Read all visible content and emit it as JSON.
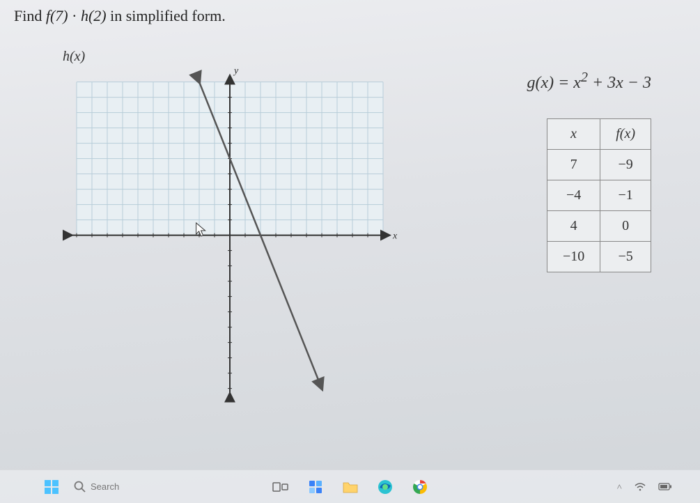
{
  "question": {
    "prefix": "Find ",
    "expr_f": "f(7)",
    "dot": " · ",
    "expr_h": "h(2)",
    "suffix": " in simplified form."
  },
  "chart": {
    "label": "h(x)",
    "type": "line",
    "axis_label_x": "x",
    "axis_label_y": "y",
    "xlim": [
      -10,
      10
    ],
    "ylim": [
      -10,
      10
    ],
    "xtick_step": 1,
    "ytick_step": 1,
    "grid_visible_top_only": true,
    "grid_xlim": [
      -10,
      10
    ],
    "grid_ylim": [
      0,
      10
    ],
    "line_points": [
      [
        -2,
        10
      ],
      [
        6,
        -10
      ]
    ],
    "line_color": "#555555",
    "line_width": 2.5,
    "line_has_arrows": true,
    "axis_color": "#333333",
    "axis_width": 2,
    "grid_color": "#b7cdd9",
    "grid_bg": "#e8eff3",
    "background_color": "transparent",
    "cursor_visible": true,
    "cursor_pos": [
      -2.2,
      0.8
    ]
  },
  "formula": {
    "lhs": "g(x)",
    "eq": " = ",
    "rhs_a": "x",
    "rhs_exp": "2",
    "rhs_b": " + 3x − 3"
  },
  "table": {
    "columns": [
      "x",
      "f(x)"
    ],
    "rows": [
      [
        "7",
        "−9"
      ],
      [
        "−4",
        "−1"
      ],
      [
        "4",
        "0"
      ],
      [
        "−10",
        "−5"
      ]
    ],
    "border_color": "#888888",
    "cell_bg": "#eceef0",
    "fontsize": 20
  },
  "taskbar": {
    "items": [
      "start-icon",
      "search-icon",
      "task-view-icon",
      "explorer-folder-icon",
      "edge-icon",
      "chrome-icon"
    ],
    "search_placeholder": "Search",
    "tray": [
      "chevron-up-icon",
      "wifi-icon",
      "battery-icon"
    ]
  }
}
